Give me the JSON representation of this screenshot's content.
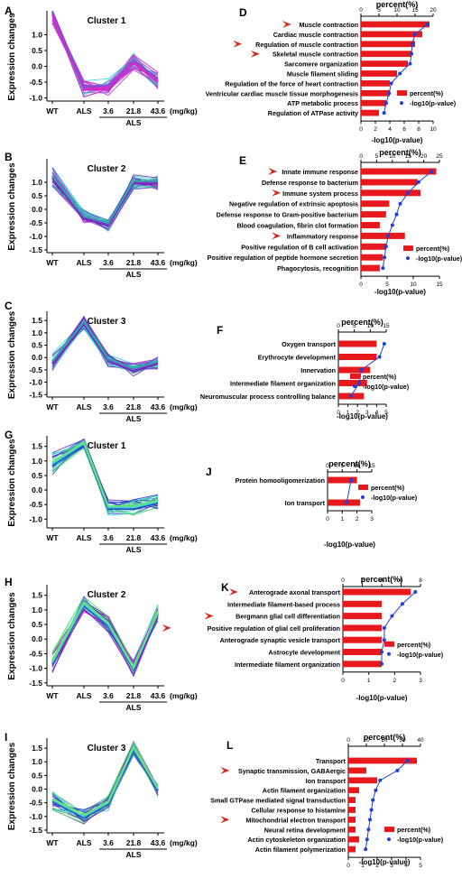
{
  "colors": {
    "bar": "#e8191c",
    "line": "#1f3fd8",
    "arrow": "#d9261c",
    "magenta": "#e020c8",
    "purple": "#6a2ab4",
    "cyan": "#38d6d0",
    "teal": "#2aa8a8",
    "green": "#6ce07a",
    "blue": "#2a48c8"
  },
  "line_panels": [
    {
      "letter": "A",
      "cluster": "Cluster 1",
      "ylabel": "Expression changes",
      "yticks": [
        "1.0",
        "0.5",
        "0.0",
        "-0.5",
        "-1.0"
      ],
      "xticks": [
        "WT",
        "ALS",
        "3.6",
        "21.8",
        "43.6"
      ],
      "unit": "(mg/kg)",
      "group": "ALS",
      "yrange": [
        -1.1,
        1.7
      ],
      "mean": [
        1.7,
        -0.7,
        -0.65,
        0.15,
        -0.45
      ],
      "palette": [
        "#e020c8",
        "#c837c8",
        "#8a4ad8",
        "#38d6d0"
      ]
    },
    {
      "letter": "B",
      "cluster": "Cluster 2",
      "ylabel": "Expression changes",
      "yticks": [
        "1.0",
        "0.5",
        "0.0",
        "-0.5",
        "-1.0",
        "-1.5"
      ],
      "xticks": [
        "WT",
        "ALS",
        "3.6",
        "21.8",
        "43.6"
      ],
      "unit": "(mg/kg)",
      "group": "ALS",
      "yrange": [
        -1.6,
        1.8
      ],
      "mean": [
        1.2,
        -0.3,
        -0.55,
        1.0,
        1.0
      ],
      "palette": [
        "#6a2ab4",
        "#8a3ad0",
        "#2aa8a8",
        "#38d6d0",
        "#c020c8"
      ]
    },
    {
      "letter": "C",
      "cluster": "Cluster 3",
      "ylabel": "Expression changes",
      "yticks": [
        "1.5",
        "1.0",
        "0.5",
        "0.0",
        "-0.5",
        "-1.0",
        "-1.5"
      ],
      "xticks": [
        "WT",
        "ALS",
        "3.6",
        "21.8",
        "43.6"
      ],
      "unit": "(mg/kg)",
      "group": "ALS",
      "yrange": [
        -1.6,
        1.8
      ],
      "mean": [
        -0.2,
        1.4,
        -0.1,
        -0.5,
        -0.2
      ],
      "palette": [
        "#6a2ab4",
        "#8a3ad0",
        "#2aa8a8",
        "#38d6d0",
        "#5060d0"
      ]
    },
    {
      "letter": "G",
      "cluster": "Cluster 1",
      "ylabel": "Expression changes",
      "yticks": [
        "1.5",
        "1.0",
        "0.5",
        "0.0",
        "-0.5",
        "-1.0"
      ],
      "xticks": [
        "WT",
        "ALS",
        "3.6",
        "21.8",
        "43.6"
      ],
      "unit": "(mg/kg)",
      "group": "ALS",
      "yrange": [
        -1.3,
        1.8
      ],
      "mean": [
        0.9,
        1.6,
        -0.6,
        -0.6,
        -0.4
      ],
      "palette": [
        "#2a48c8",
        "#38d6d0",
        "#6ce07a",
        "#2aa8a8",
        "#4a2ad0"
      ]
    },
    {
      "letter": "H",
      "cluster": "Cluster 2",
      "ylabel": "Expression changes",
      "yticks": [
        "1.5",
        "1.0",
        "0.5",
        "0.0",
        "-0.5",
        "-1.0",
        "-1.5"
      ],
      "xticks": [
        "WT",
        "ALS",
        "3.6",
        "21.8",
        "43.6"
      ],
      "unit": "(mg/kg)",
      "group": "ALS",
      "yrange": [
        -1.6,
        1.8
      ],
      "mean": [
        -0.8,
        1.2,
        0.5,
        -1.0,
        0.9
      ],
      "palette": [
        "#2a48c8",
        "#38d6d0",
        "#6ce07a",
        "#6a2ab4",
        "#c020c8"
      ]
    },
    {
      "letter": "I",
      "cluster": "Cluster 3",
      "ylabel": "Expression changes",
      "yticks": [
        "1.5",
        "1.0",
        "0.5",
        "0.0",
        "-0.5",
        "-1.0",
        "-1.5"
      ],
      "xticks": [
        "WT",
        "ALS",
        "3.6",
        "21.8",
        "43.6"
      ],
      "unit": "(mg/kg)",
      "group": "ALS",
      "yrange": [
        -1.6,
        1.8
      ],
      "mean": [
        -0.4,
        -1.0,
        -0.5,
        1.5,
        0.0
      ],
      "palette": [
        "#2a48c8",
        "#38d6d0",
        "#6ce07a",
        "#6a2ab4",
        "#2aa8a8"
      ]
    }
  ],
  "chart_data": [
    {
      "type": "bar",
      "panel": "D",
      "title": "percent(%)",
      "xlabel": "-log10(p-value)",
      "pct_ticks": [
        "0",
        "5",
        "10",
        "15",
        "20"
      ],
      "pct_max": 20,
      "p_ticks": [
        "0",
        "2",
        "4",
        "6",
        "8",
        "10"
      ],
      "p_max": 10,
      "categories": [
        "Muscle contraction",
        "Cardiac muscle contraction",
        "Regulation of muscle contraction",
        "Skeletal muscle contraction",
        "Sarcomere organization",
        "Muscle filament sliding",
        "Regulation of the force of heart contraction",
        "Ventricular cardiac muscle tissue morphogenesis",
        "ATP metabolic process",
        "Regulation of ATPase activity"
      ],
      "series": [
        {
          "name": "percent(%)",
          "values": [
            19,
            17,
            15,
            14,
            13,
            10,
            8,
            8,
            7,
            5
          ]
        },
        {
          "name": "-log10(p-value)",
          "values": [
            9.2,
            7.5,
            7.1,
            7.0,
            6.8,
            5.4,
            4.2,
            3.9,
            3.5,
            3.2
          ]
        }
      ],
      "arrows": [
        0,
        2,
        3
      ],
      "legend": [
        "percent(%)",
        "-log10(p-value)"
      ]
    },
    {
      "type": "bar",
      "panel": "E",
      "title": "percent(%)",
      "xlabel": "-log10(p-value)",
      "pct_ticks": [
        "0",
        "5",
        "10",
        "15",
        "20",
        "25"
      ],
      "pct_max": 25,
      "p_ticks": [
        "0",
        "5",
        "10",
        "15"
      ],
      "p_max": 15,
      "categories": [
        "Innate immune response",
        "Defense response to bacterium",
        "Immune system process",
        "Negative regulation of extrinsic apoptosis",
        "Defense response to Gram-positive bacterium",
        "Blood coagulation, fibrin clot formation",
        "Inflammatory response",
        "Positive regulation of B cell activation",
        "Positive regulation of peptide hormone secretion",
        "Phagocytosis, recognition"
      ],
      "series": [
        {
          "name": "percent(%)",
          "values": [
            24,
            18,
            19,
            9,
            8,
            6,
            14,
            8,
            7,
            6
          ]
        },
        {
          "name": "-log10(p-value)",
          "values": [
            13.5,
            11,
            9,
            7.5,
            6.8,
            6,
            5.2,
            4.8,
            4.5,
            4.2
          ]
        }
      ],
      "arrows": [
        0,
        2,
        6
      ],
      "legend": [
        "percent(%)",
        "-log10(p-value)"
      ]
    },
    {
      "type": "bar",
      "panel": "F",
      "title": "percent(%)",
      "xlabel": "-log10(p-value)",
      "pct_ticks": [
        "0",
        "5",
        "10",
        "15"
      ],
      "pct_max": 15,
      "p_ticks": [
        "0",
        "1",
        "2",
        "3",
        "4",
        "5"
      ],
      "p_max": 5,
      "categories": [
        "Oxygen transport",
        "Erythrocyte development",
        "Innervation",
        "Intermediate filament organization",
        "Neuromuscular process controlling balance"
      ],
      "series": [
        {
          "name": "percent(%)",
          "values": [
            12,
            12,
            10,
            9,
            8
          ]
        },
        {
          "name": "-log10(p-value)",
          "values": [
            4.8,
            4.3,
            2.4,
            2.2,
            1.3
          ]
        }
      ],
      "arrows": [],
      "legend": [
        "percent(%)",
        "-log10(p-value)"
      ]
    },
    {
      "type": "bar",
      "panel": "J",
      "title": "percent(%)",
      "xlabel": "-log10(p-value)",
      "pct_ticks": [
        "0",
        "5",
        "10",
        "15"
      ],
      "pct_max": 15,
      "p_ticks": [
        "0",
        "1",
        "2",
        "3"
      ],
      "p_max": 3,
      "categories": [
        "Protein homooligomerization",
        "Ion transport"
      ],
      "series": [
        {
          "name": "percent(%)",
          "values": [
            10,
            11
          ]
        },
        {
          "name": "-log10(p-value)",
          "values": [
            1.6,
            1.3
          ]
        }
      ],
      "arrows": [],
      "legend": [
        "percent(%)",
        "-log10(p-value)"
      ]
    },
    {
      "type": "bar",
      "panel": "K",
      "title": "percent(%)",
      "xlabel": "-log10(p-value)",
      "pct_ticks": [
        "0",
        "2",
        "4",
        "6",
        "8"
      ],
      "pct_max": 8,
      "p_ticks": [
        "0",
        "1",
        "2",
        "3"
      ],
      "p_max": 3,
      "categories": [
        "Anterograde axonal transport",
        "Intermediate filament-based process",
        "Bergmann glial cell differentiation",
        "Positive regulation of glial cell proliferation",
        "Anterograde synaptic vesicle transport",
        "Astrocyte development",
        "Intermediate filament organization"
      ],
      "series": [
        {
          "name": "percent(%)",
          "values": [
            7,
            4,
            4,
            4,
            4,
            4,
            4
          ]
        },
        {
          "name": "-log10(p-value)",
          "values": [
            2.8,
            2.3,
            1.9,
            1.6,
            1.6,
            1.5,
            1.5
          ]
        }
      ],
      "arrows": [
        0,
        2,
        3
      ],
      "legend": [
        "percent(%)",
        "-log10(p-value)"
      ]
    },
    {
      "type": "bar",
      "panel": "L",
      "title": "percent(%)",
      "xlabel": "-log10(p-value)",
      "pct_ticks": [
        "0",
        "10",
        "20",
        "30",
        "40"
      ],
      "pct_max": 40,
      "p_ticks": [
        "0",
        "1",
        "2",
        "3",
        "4",
        "5"
      ],
      "p_max": 5,
      "categories": [
        "Transport",
        "Synaptic transmission, GABAergic",
        "Ion transport",
        "Actin filament organization",
        "Small GTPase mediated signal transduction",
        "Cellular response to histamine",
        "Mitochondrial electron transport",
        "Neural retina development",
        "Actin cytoskeleton organization",
        "Actin filament polymerization"
      ],
      "series": [
        {
          "name": "percent(%)",
          "values": [
            38,
            10,
            16,
            6,
            4,
            4,
            4,
            4,
            6,
            4
          ]
        },
        {
          "name": "-log10(p-value)",
          "values": [
            4.1,
            3.4,
            2.2,
            1.9,
            1.7,
            1.6,
            1.5,
            1.4,
            1.3,
            1.2
          ]
        }
      ],
      "arrows": [
        1,
        6
      ],
      "legend": [
        "percent(%)",
        "-log10(p-value)"
      ]
    }
  ]
}
